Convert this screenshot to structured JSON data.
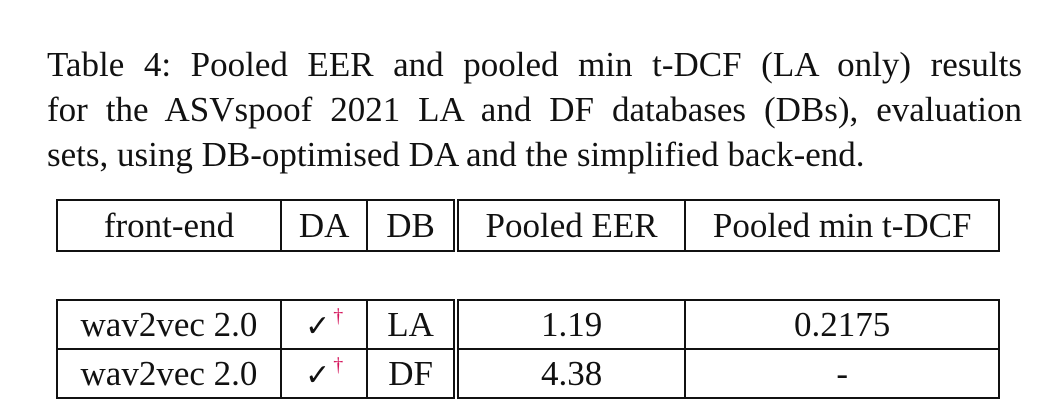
{
  "caption": {
    "lines": [
      "Table 4: Pooled EER and pooled min t-DCF (LA only) results",
      "for the ASVspoof 2021 LA and DF databases (DBs), evaluation",
      "sets, using DB-optimised DA and the simplified back-end."
    ]
  },
  "table": {
    "headers": [
      "front-end",
      "DA",
      "DB",
      "Pooled EER",
      "Pooled min t-DCF"
    ],
    "rows": [
      {
        "front_end": "wav2vec 2.0",
        "da_mark": "✓",
        "da_sup": "†",
        "db": "LA",
        "pooled_eer": "1.19",
        "pooled_min_tdcf": "0.2175"
      },
      {
        "front_end": "wav2vec 2.0",
        "da_mark": "✓",
        "da_sup": "†",
        "db": "DF",
        "pooled_eer": "4.38",
        "pooled_min_tdcf": "-"
      }
    ]
  },
  "colors": {
    "text": "#111111",
    "dagger": "#d4145a",
    "background": "#ffffff"
  }
}
